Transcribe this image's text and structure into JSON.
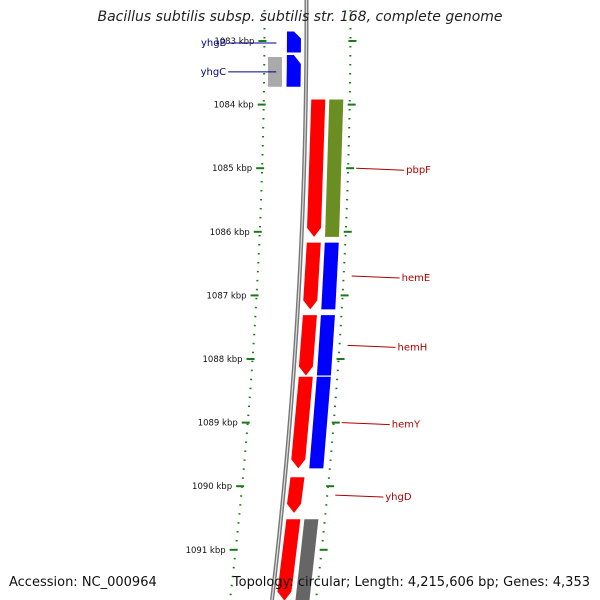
{
  "title": "Bacillus subtilis subsp. subtilis str. 168, complete genome",
  "accession_text": "Accession: NC_000964",
  "summary_text": "Topology: circular; Length: 4,215,606 bp; Genes: 4,353",
  "colors": {
    "forward_cds": "#0000ff",
    "reverse_cds": "#ff0000",
    "orf_other": "#6b8e23",
    "orf_grey": "#888888",
    "backbone": "#888888",
    "tick": "#1a7a1a",
    "label_forward": "#00008b",
    "label_reverse": "#b00000"
  },
  "ruler": {
    "ticks": [
      {
        "kbp": 1083,
        "label": "1083 kbp"
      },
      {
        "kbp": 1084,
        "label": "1084 kbp"
      },
      {
        "kbp": 1085,
        "label": "1085 kbp"
      },
      {
        "kbp": 1086,
        "label": "1086 kbp"
      },
      {
        "kbp": 1087,
        "label": "1087 kbp"
      },
      {
        "kbp": 1088,
        "label": "1088 kbp"
      },
      {
        "kbp": 1089,
        "label": "1089 kbp"
      },
      {
        "kbp": 1090,
        "label": "1090 kbp"
      },
      {
        "kbp": 1091,
        "label": "1091 kbp"
      }
    ]
  },
  "genes": [
    {
      "name": "yhgB",
      "strand": "forward",
      "start_kbp": 1082.85,
      "end_kbp": 1083.18
    },
    {
      "name": "yhgC",
      "strand": "forward",
      "start_kbp": 1083.22,
      "end_kbp": 1083.72
    },
    {
      "name": "pbpF",
      "strand": "reverse",
      "start_kbp": 1083.92,
      "end_kbp": 1086.08
    },
    {
      "name": "hemE",
      "strand": "reverse",
      "start_kbp": 1086.17,
      "end_kbp": 1087.22
    },
    {
      "name": "hemH",
      "strand": "reverse",
      "start_kbp": 1087.31,
      "end_kbp": 1088.26
    },
    {
      "name": "hemY",
      "strand": "reverse",
      "start_kbp": 1088.28,
      "end_kbp": 1089.72
    },
    {
      "name": "yhgD",
      "strand": "reverse",
      "start_kbp": 1089.86,
      "end_kbp": 1090.42
    },
    {
      "name": "",
      "strand": "reverse",
      "start_kbp": 1090.52,
      "end_kbp": 1091.8
    }
  ],
  "orfs": [
    {
      "frame": "forward",
      "color": "#0000ff",
      "start_kbp": 1082.85,
      "end_kbp": 1083.18
    },
    {
      "frame": "forward",
      "color": "#0000ff",
      "start_kbp": 1083.22,
      "end_kbp": 1083.72
    },
    {
      "frame": "forward-alt",
      "color": "#aaaaaa",
      "start_kbp": 1083.22,
      "end_kbp": 1083.72
    },
    {
      "frame": "reverse",
      "color": "#6b8e23",
      "start_kbp": 1083.92,
      "end_kbp": 1086.08
    },
    {
      "frame": "reverse",
      "color": "#0000ff",
      "start_kbp": 1086.17,
      "end_kbp": 1087.22
    },
    {
      "frame": "reverse",
      "color": "#0000ff",
      "start_kbp": 1087.31,
      "end_kbp": 1088.26
    },
    {
      "frame": "reverse",
      "color": "#0000ff",
      "start_kbp": 1088.28,
      "end_kbp": 1089.72
    },
    {
      "frame": "reverse",
      "color": "#666666",
      "start_kbp": 1090.52,
      "end_kbp": 1091.8
    }
  ]
}
